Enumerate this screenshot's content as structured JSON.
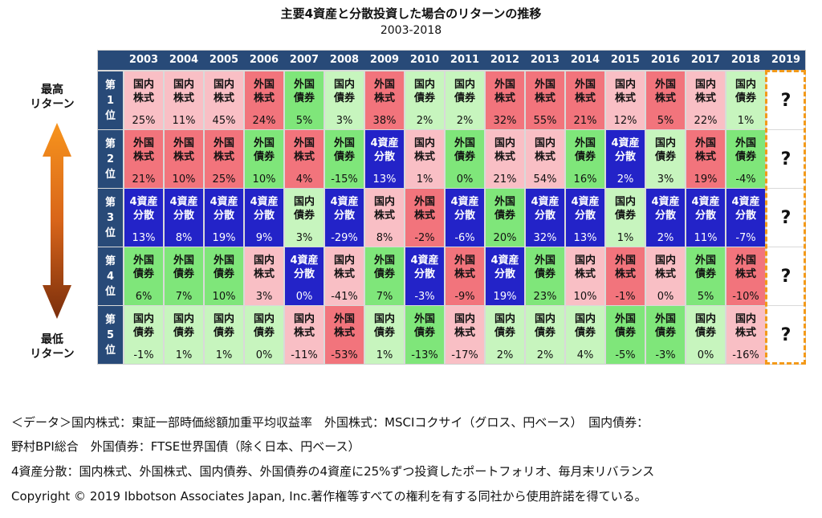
{
  "title": "主要4資産と分散投資した場合のリターンの推移",
  "subtitle": "2003-2018",
  "side_labels": {
    "top": "最高\nリターン",
    "bottom": "最低\nリターン"
  },
  "colors": {
    "header": "#284a78",
    "国内株式": "#f9bfc5",
    "外国株式": "#f2747c",
    "国内債券": "#c7f5be",
    "外国債券": "#7fe67a",
    "4資産分散": "#2323c8",
    "question_border": "#f39a1a"
  },
  "footnotes": [
    "＜データ＞国内株式：東証一部時価総額加重平均収益率　外国株式：MSCIコクサイ（グロス、円ベース）　国内債券：",
    "野村BPI総合　外国債券：FTSE世界国債（除く日本、円ベース）",
    "4資産分散：国内株式、外国株式、国内債券、外国債券の4資産に25%ずつ投資したポートフォリオ、毎月末リバランス",
    "Copyright © 2019 Ibbotson Associates Japan, Inc.著作権等すべての権利を有する同社から使用許諾を得ている。"
  ],
  "chart_data": {
    "type": "table",
    "title": "主要4資産と分散投資した場合のリターンの推移",
    "subtitle": "2003-2018",
    "years": [
      "2003",
      "2004",
      "2005",
      "2006",
      "2007",
      "2008",
      "2009",
      "2010",
      "2011",
      "2012",
      "2013",
      "2014",
      "2015",
      "2016",
      "2017",
      "2018",
      "2019"
    ],
    "ranks": [
      "第1位",
      "第2位",
      "第3位",
      "第4位",
      "第5位"
    ],
    "unknown_year": "2019",
    "unknown_mark": "?",
    "rows": [
      [
        [
          "国内株式",
          "25%"
        ],
        [
          "国内株式",
          "11%"
        ],
        [
          "国内株式",
          "45%"
        ],
        [
          "外国株式",
          "24%"
        ],
        [
          "外国債券",
          "5%"
        ],
        [
          "国内債券",
          "3%"
        ],
        [
          "外国株式",
          "38%"
        ],
        [
          "国内債券",
          "2%"
        ],
        [
          "国内債券",
          "2%"
        ],
        [
          "外国株式",
          "32%"
        ],
        [
          "外国株式",
          "55%"
        ],
        [
          "外国株式",
          "21%"
        ],
        [
          "国内株式",
          "12%"
        ],
        [
          "外国株式",
          "5%"
        ],
        [
          "国内株式",
          "22%"
        ],
        [
          "国内債券",
          "1%"
        ]
      ],
      [
        [
          "外国株式",
          "21%"
        ],
        [
          "外国株式",
          "10%"
        ],
        [
          "外国株式",
          "25%"
        ],
        [
          "外国債券",
          "10%"
        ],
        [
          "外国株式",
          "4%"
        ],
        [
          "外国債券",
          "-15%"
        ],
        [
          "4資産分散",
          "13%"
        ],
        [
          "国内株式",
          "1%"
        ],
        [
          "外国債券",
          "0%"
        ],
        [
          "国内株式",
          "21%"
        ],
        [
          "国内株式",
          "54%"
        ],
        [
          "外国債券",
          "16%"
        ],
        [
          "4資産分散",
          "2%"
        ],
        [
          "国内債券",
          "3%"
        ],
        [
          "外国株式",
          "19%"
        ],
        [
          "外国債券",
          "-4%"
        ]
      ],
      [
        [
          "4資産分散",
          "13%"
        ],
        [
          "4資産分散",
          "8%"
        ],
        [
          "4資産分散",
          "19%"
        ],
        [
          "4資産分散",
          "9%"
        ],
        [
          "国内債券",
          "3%"
        ],
        [
          "4資産分散",
          "-29%"
        ],
        [
          "国内株式",
          "8%"
        ],
        [
          "外国株式",
          "-2%"
        ],
        [
          "4資産分散",
          "-6%"
        ],
        [
          "外国債券",
          "20%"
        ],
        [
          "4資産分散",
          "32%"
        ],
        [
          "4資産分散",
          "13%"
        ],
        [
          "国内債券",
          "1%"
        ],
        [
          "4資産分散",
          "2%"
        ],
        [
          "4資産分散",
          "11%"
        ],
        [
          "4資産分散",
          "-7%"
        ]
      ],
      [
        [
          "外国債券",
          "6%"
        ],
        [
          "外国債券",
          "7%"
        ],
        [
          "外国債券",
          "10%"
        ],
        [
          "国内株式",
          "3%"
        ],
        [
          "4資産分散",
          "0%"
        ],
        [
          "国内株式",
          "-41%"
        ],
        [
          "外国債券",
          "7%"
        ],
        [
          "4資産分散",
          "-3%"
        ],
        [
          "外国株式",
          "-9%"
        ],
        [
          "4資産分散",
          "19%"
        ],
        [
          "外国債券",
          "23%"
        ],
        [
          "国内株式",
          "10%"
        ],
        [
          "外国株式",
          "-1%"
        ],
        [
          "国内株式",
          "0%"
        ],
        [
          "外国債券",
          "5%"
        ],
        [
          "外国株式",
          "-10%"
        ]
      ],
      [
        [
          "国内債券",
          "-1%"
        ],
        [
          "国内債券",
          "1%"
        ],
        [
          "国内債券",
          "1%"
        ],
        [
          "国内債券",
          "0%"
        ],
        [
          "国内株式",
          "-11%"
        ],
        [
          "外国株式",
          "-53%"
        ],
        [
          "国内債券",
          "1%"
        ],
        [
          "外国債券",
          "-13%"
        ],
        [
          "国内株式",
          "-17%"
        ],
        [
          "国内債券",
          "2%"
        ],
        [
          "国内債券",
          "2%"
        ],
        [
          "国内債券",
          "4%"
        ],
        [
          "外国債券",
          "-5%"
        ],
        [
          "外国債券",
          "-3%"
        ],
        [
          "国内債券",
          "0%"
        ],
        [
          "国内株式",
          "-16%"
        ]
      ]
    ]
  }
}
